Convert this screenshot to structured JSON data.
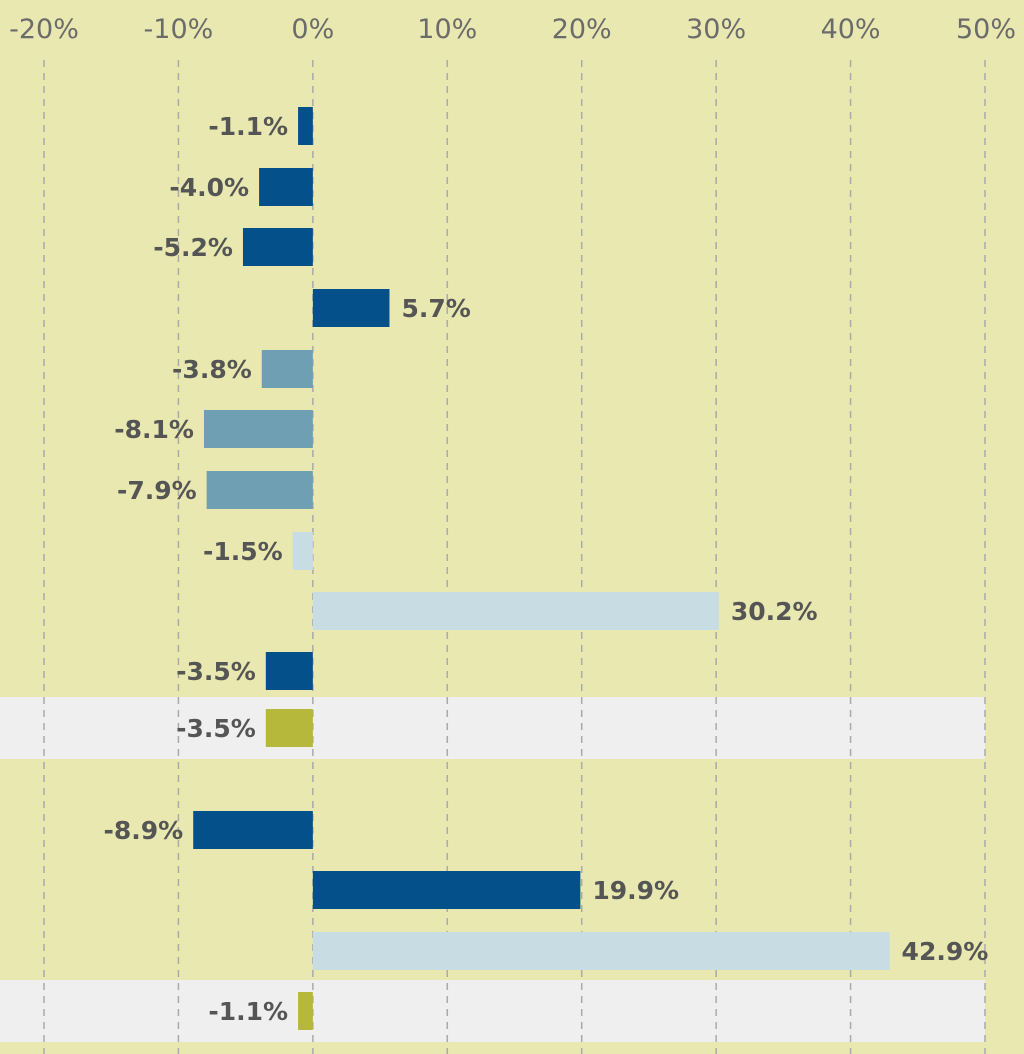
{
  "chart_data": {
    "type": "bar",
    "orientation": "horizontal",
    "title": "",
    "xlabel": "",
    "ylabel": "",
    "xlim": [
      -20,
      50
    ],
    "xticks": [
      -20,
      -10,
      0,
      10,
      20,
      30,
      40,
      50
    ],
    "tick_labels": [
      "-20%",
      "-10%",
      "0%",
      "10%",
      "20%",
      "30%",
      "40%",
      "50%"
    ],
    "grid": "vertical dashed",
    "legend": "none",
    "colors": {
      "background": "#e8e8b0",
      "highlight_band": "#efefef",
      "dark_blue": "#04508a",
      "mid_blue": "#6f9fb3",
      "light_blue": "#c8dce3",
      "olive": "#b5b83a",
      "grid": "#aaaaaa",
      "label": "#555555"
    },
    "bars": [
      {
        "value": -1.1,
        "label": "-1.1%",
        "color": "dark_blue",
        "highlight": false
      },
      {
        "value": -4.0,
        "label": "-4.0%",
        "color": "dark_blue",
        "highlight": false
      },
      {
        "value": -5.2,
        "label": "-5.2%",
        "color": "dark_blue",
        "highlight": false
      },
      {
        "value": 5.7,
        "label": "5.7%",
        "color": "dark_blue",
        "highlight": false
      },
      {
        "value": -3.8,
        "label": "-3.8%",
        "color": "mid_blue",
        "highlight": false
      },
      {
        "value": -8.1,
        "label": "-8.1%",
        "color": "mid_blue",
        "highlight": false
      },
      {
        "value": -7.9,
        "label": "-7.9%",
        "color": "mid_blue",
        "highlight": false
      },
      {
        "value": -1.5,
        "label": "-1.5%",
        "color": "light_blue",
        "highlight": false
      },
      {
        "value": 30.2,
        "label": "30.2%",
        "color": "light_blue",
        "highlight": false
      },
      {
        "value": -3.5,
        "label": "-3.5%",
        "color": "dark_blue",
        "highlight": false
      },
      {
        "value": -3.5,
        "label": "-3.5%",
        "color": "olive",
        "highlight": true
      },
      {
        "value": -8.9,
        "label": "-8.9%",
        "color": "dark_blue",
        "highlight": false
      },
      {
        "value": 19.9,
        "label": "19.9%",
        "color": "dark_blue",
        "highlight": false
      },
      {
        "value": 42.9,
        "label": "42.9%",
        "color": "light_blue",
        "highlight": false
      },
      {
        "value": -1.1,
        "label": "-1.1%",
        "color": "olive",
        "highlight": true
      }
    ]
  }
}
